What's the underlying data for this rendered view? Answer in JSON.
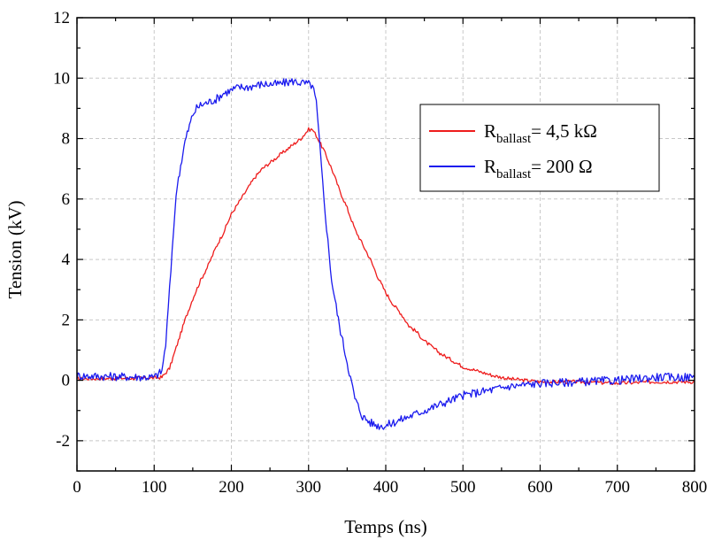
{
  "chart_data": {
    "type": "line",
    "title": "",
    "xlabel": "Temps (ns)",
    "ylabel": "Tension (kV)",
    "xlim": [
      0,
      800
    ],
    "ylim": [
      -3,
      12
    ],
    "x_ticks": [
      0,
      100,
      200,
      300,
      400,
      500,
      600,
      700,
      800
    ],
    "y_ticks": [
      -2,
      0,
      2,
      4,
      6,
      8,
      10,
      12
    ],
    "grid": true,
    "legend_position": "top-right",
    "series": [
      {
        "name_main": "R",
        "name_sub": "ballast",
        "name_suffix": "= 4,5 kΩ",
        "color": "#ee1c1c",
        "x": [
          0,
          100,
          110,
          120,
          130,
          140,
          150,
          160,
          170,
          180,
          190,
          200,
          210,
          220,
          230,
          240,
          250,
          260,
          270,
          280,
          290,
          300,
          305,
          310,
          320,
          330,
          340,
          350,
          360,
          370,
          380,
          390,
          400,
          410,
          420,
          430,
          440,
          450,
          460,
          470,
          480,
          490,
          500,
          520,
          540,
          560,
          580,
          600,
          650,
          700,
          750,
          800
        ],
        "y": [
          0.05,
          0.08,
          0.1,
          0.4,
          1.2,
          2.0,
          2.7,
          3.3,
          3.8,
          4.4,
          4.9,
          5.5,
          5.9,
          6.3,
          6.7,
          7.0,
          7.2,
          7.4,
          7.6,
          7.8,
          8.0,
          8.3,
          8.3,
          8.1,
          7.6,
          7.0,
          6.3,
          5.7,
          5.0,
          4.5,
          4.0,
          3.4,
          2.9,
          2.5,
          2.2,
          1.8,
          1.6,
          1.3,
          1.1,
          0.9,
          0.75,
          0.6,
          0.45,
          0.3,
          0.15,
          0.05,
          0.0,
          -0.05,
          -0.05,
          -0.1,
          -0.05,
          -0.05
        ]
      },
      {
        "name_main": "R",
        "name_sub": "ballast",
        "name_suffix": "= 200 Ω",
        "color": "#1a1aee",
        "x": [
          0,
          100,
          110,
          115,
          120,
          125,
          130,
          140,
          150,
          155,
          160,
          170,
          180,
          190,
          200,
          210,
          220,
          240,
          260,
          280,
          300,
          305,
          310,
          315,
          320,
          325,
          330,
          340,
          350,
          360,
          370,
          380,
          390,
          400,
          410,
          420,
          440,
          460,
          480,
          500,
          520,
          540,
          560,
          580,
          600,
          650,
          700,
          750,
          800
        ],
        "y": [
          0.15,
          0.1,
          0.3,
          1.2,
          3.0,
          5.0,
          6.5,
          7.9,
          8.8,
          9.0,
          9.1,
          9.2,
          9.3,
          9.5,
          9.6,
          9.7,
          9.7,
          9.8,
          9.8,
          9.9,
          9.8,
          9.75,
          9.2,
          7.6,
          6.0,
          4.6,
          3.3,
          1.8,
          0.6,
          -0.6,
          -1.2,
          -1.4,
          -1.5,
          -1.5,
          -1.4,
          -1.3,
          -1.1,
          -0.9,
          -0.7,
          -0.5,
          -0.4,
          -0.3,
          -0.2,
          -0.15,
          -0.1,
          -0.05,
          0.0,
          0.1,
          0.1
        ]
      }
    ]
  }
}
